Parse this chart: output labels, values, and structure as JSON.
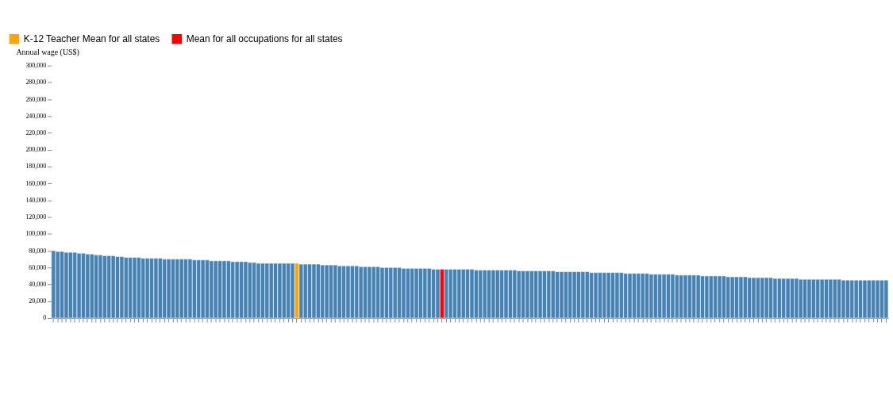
{
  "chart_data": {
    "type": "bar",
    "ylabel": "Annual wage (US$)",
    "categories": [
      null,
      null,
      null,
      null,
      null,
      null,
      null,
      null,
      null,
      null,
      null,
      null,
      null,
      null,
      null,
      null,
      null,
      null,
      null,
      null,
      null,
      null,
      null,
      null,
      null,
      null,
      null,
      null,
      null,
      null,
      null,
      null,
      null,
      null,
      null,
      null,
      null,
      null,
      null,
      null,
      null,
      null,
      null,
      null,
      null,
      null,
      null,
      null,
      null,
      null,
      null,
      null,
      null,
      null,
      null,
      null,
      null,
      null,
      null,
      null,
      null,
      null,
      null,
      null,
      null,
      null,
      null,
      null,
      null,
      null,
      null,
      null,
      null,
      null,
      null,
      null,
      null,
      null,
      null,
      null,
      null,
      null,
      null,
      null,
      null,
      null,
      null,
      null,
      null,
      null,
      null,
      null,
      null,
      null,
      null,
      null,
      null,
      null,
      null,
      null,
      null,
      null,
      null,
      null,
      null,
      null,
      null,
      null,
      null,
      null,
      null,
      null,
      null,
      null,
      null,
      null,
      null,
      null,
      null,
      null,
      null,
      null,
      null,
      null,
      null,
      null,
      null,
      null,
      null,
      null,
      null,
      null,
      null,
      null,
      null,
      null,
      null,
      null,
      null,
      null,
      null,
      null,
      null,
      null,
      null,
      null,
      null,
      null,
      null,
      null,
      null,
      null,
      null,
      null,
      null,
      null,
      null,
      null,
      null,
      null,
      null,
      null,
      null,
      null,
      null,
      null,
      null,
      null,
      null,
      null,
      null,
      null,
      null,
      null,
      null,
      null,
      null,
      null,
      null,
      null,
      null,
      null,
      null,
      null,
      null,
      null,
      null,
      null,
      null,
      null,
      null,
      null,
      null,
      null,
      null,
      null
    ],
    "series": [
      {
        "color": "#4682b4",
        "values": [
          80000,
          79000,
          79000,
          78000,
          78000,
          78000,
          77000,
          77000,
          76000,
          76000,
          75000,
          75000,
          74000,
          74000,
          74000,
          73000,
          73000,
          72000,
          72000,
          72000,
          72000,
          71000,
          71000,
          71000,
          71000,
          71000,
          70000,
          70000,
          70000,
          70000,
          70000,
          70000,
          70000,
          69000,
          69000,
          69000,
          69000,
          68000,
          68000,
          68000,
          68000,
          68000,
          67000,
          67000,
          67000,
          67000,
          66000,
          66000,
          65000,
          65000,
          65000,
          65000,
          65000,
          65000,
          65000,
          65000,
          65000,
          null,
          64000,
          64000,
          64000,
          64000,
          64000,
          63000,
          63000,
          63000,
          63000,
          62000,
          62000,
          62000,
          62000,
          62000,
          61000,
          61000,
          61000,
          61000,
          61000,
          60000,
          60000,
          60000,
          60000,
          60000,
          59000,
          59000,
          59000,
          59000,
          59000,
          59000,
          59000,
          58000,
          58000,
          null,
          58000,
          58000,
          58000,
          58000,
          58000,
          58000,
          58000,
          57000,
          57000,
          57000,
          57000,
          57000,
          57000,
          57000,
          57000,
          57000,
          57000,
          56000,
          56000,
          56000,
          56000,
          56000,
          56000,
          56000,
          56000,
          56000,
          55000,
          55000,
          55000,
          55000,
          55000,
          55000,
          55000,
          55000,
          54000,
          54000,
          54000,
          54000,
          54000,
          54000,
          54000,
          54000,
          53000,
          53000,
          53000,
          53000,
          53000,
          53000,
          52000,
          52000,
          52000,
          52000,
          52000,
          52000,
          51000,
          51000,
          51000,
          51000,
          51000,
          51000,
          50000,
          50000,
          50000,
          50000,
          50000,
          50000,
          49000,
          49000,
          49000,
          49000,
          49000,
          48000,
          48000,
          48000,
          48000,
          48000,
          48000,
          47000,
          47000,
          47000,
          47000,
          47000,
          47000,
          46000,
          46000,
          46000,
          46000,
          46000,
          46000,
          46000,
          46000,
          46000,
          46000,
          45000,
          45000,
          45000,
          45000,
          45000,
          45000,
          45000,
          45000,
          45000,
          45000,
          45000
        ]
      },
      {
        "name": "K-12 Teacher Mean for all states",
        "color": "#ffa500",
        "values": [
          null,
          null,
          null,
          null,
          null,
          null,
          null,
          null,
          null,
          null,
          null,
          null,
          null,
          null,
          null,
          null,
          null,
          null,
          null,
          null,
          null,
          null,
          null,
          null,
          null,
          null,
          null,
          null,
          null,
          null,
          null,
          null,
          null,
          null,
          null,
          null,
          null,
          null,
          null,
          null,
          null,
          null,
          null,
          null,
          null,
          null,
          null,
          null,
          null,
          null,
          null,
          null,
          null,
          null,
          null,
          null,
          null,
          65000,
          null,
          null,
          null,
          null,
          null,
          null,
          null,
          null,
          null,
          null,
          null,
          null,
          null,
          null,
          null,
          null,
          null,
          null,
          null,
          null,
          null,
          null,
          null,
          null,
          null,
          null,
          null,
          null,
          null,
          null,
          null,
          null,
          null,
          null,
          null,
          null,
          null,
          null,
          null,
          null,
          null,
          null,
          null,
          null,
          null,
          null,
          null,
          null,
          null,
          null,
          null,
          null,
          null,
          null,
          null,
          null,
          null,
          null,
          null,
          null,
          null,
          null,
          null,
          null,
          null,
          null,
          null,
          null,
          null,
          null,
          null,
          null,
          null,
          null,
          null,
          null,
          null,
          null,
          null,
          null,
          null,
          null,
          null,
          null,
          null,
          null,
          null,
          null,
          null,
          null,
          null,
          null,
          null,
          null,
          null,
          null,
          null,
          null,
          null,
          null,
          null,
          null,
          null,
          null,
          null,
          null,
          null,
          null,
          null,
          null,
          null,
          null,
          null,
          null,
          null,
          null,
          null,
          null,
          null,
          null,
          null,
          null,
          null,
          null,
          null,
          null,
          null,
          null,
          null,
          null,
          null,
          null,
          null,
          null,
          null,
          null,
          null,
          null
        ]
      },
      {
        "name": "Mean for all occupations for all states",
        "color": "#ff0000",
        "values": [
          null,
          null,
          null,
          null,
          null,
          null,
          null,
          null,
          null,
          null,
          null,
          null,
          null,
          null,
          null,
          null,
          null,
          null,
          null,
          null,
          null,
          null,
          null,
          null,
          null,
          null,
          null,
          null,
          null,
          null,
          null,
          null,
          null,
          null,
          null,
          null,
          null,
          null,
          null,
          null,
          null,
          null,
          null,
          null,
          null,
          null,
          null,
          null,
          null,
          null,
          null,
          null,
          null,
          null,
          null,
          null,
          null,
          null,
          null,
          null,
          null,
          null,
          null,
          null,
          null,
          null,
          null,
          null,
          null,
          null,
          null,
          null,
          null,
          null,
          null,
          null,
          null,
          null,
          null,
          null,
          null,
          null,
          null,
          null,
          null,
          null,
          null,
          null,
          null,
          null,
          null,
          58000,
          null,
          null,
          null,
          null,
          null,
          null,
          null,
          null,
          null,
          null,
          null,
          null,
          null,
          null,
          null,
          null,
          null,
          null,
          null,
          null,
          null,
          null,
          null,
          null,
          null,
          null,
          null,
          null,
          null,
          null,
          null,
          null,
          null,
          null,
          null,
          null,
          null,
          null,
          null,
          null,
          null,
          null,
          null,
          null,
          null,
          null,
          null,
          null,
          null,
          null,
          null,
          null,
          null,
          null,
          null,
          null,
          null,
          null,
          null,
          null,
          null,
          null,
          null,
          null,
          null,
          null,
          null,
          null,
          null,
          null,
          null,
          null,
          null,
          null,
          null,
          null,
          null,
          null,
          null,
          null,
          null,
          null,
          null,
          null,
          null,
          null,
          null,
          null,
          null,
          null,
          null,
          null,
          null,
          null,
          null,
          null,
          null,
          null,
          null,
          null,
          null,
          null,
          null,
          null
        ]
      }
    ],
    "ylim": [
      0,
      300000
    ],
    "yticks": [
      {
        "value": 0,
        "label": "0"
      },
      {
        "value": 20000,
        "label": "20,000"
      },
      {
        "value": 40000,
        "label": "40,000"
      },
      {
        "value": 60000,
        "label": "60,000"
      },
      {
        "value": 80000,
        "label": "80,000"
      },
      {
        "value": 100000,
        "label": "100,000"
      },
      {
        "value": 120000,
        "label": "120,000"
      },
      {
        "value": 140000,
        "label": "140,000"
      },
      {
        "value": 160000,
        "label": "160,000"
      },
      {
        "value": 180000,
        "label": "180,000"
      },
      {
        "value": 200000,
        "label": "200,000"
      },
      {
        "value": 220000,
        "label": "220,000"
      },
      {
        "value": 240000,
        "label": "240,000"
      },
      {
        "value": 260000,
        "label": "260,000"
      },
      {
        "value": 280000,
        "label": "280,000"
      },
      {
        "value": 300000,
        "label": "300,000"
      }
    ],
    "tick_labels": "y",
    "legend": "top left",
    "grid": false
  }
}
